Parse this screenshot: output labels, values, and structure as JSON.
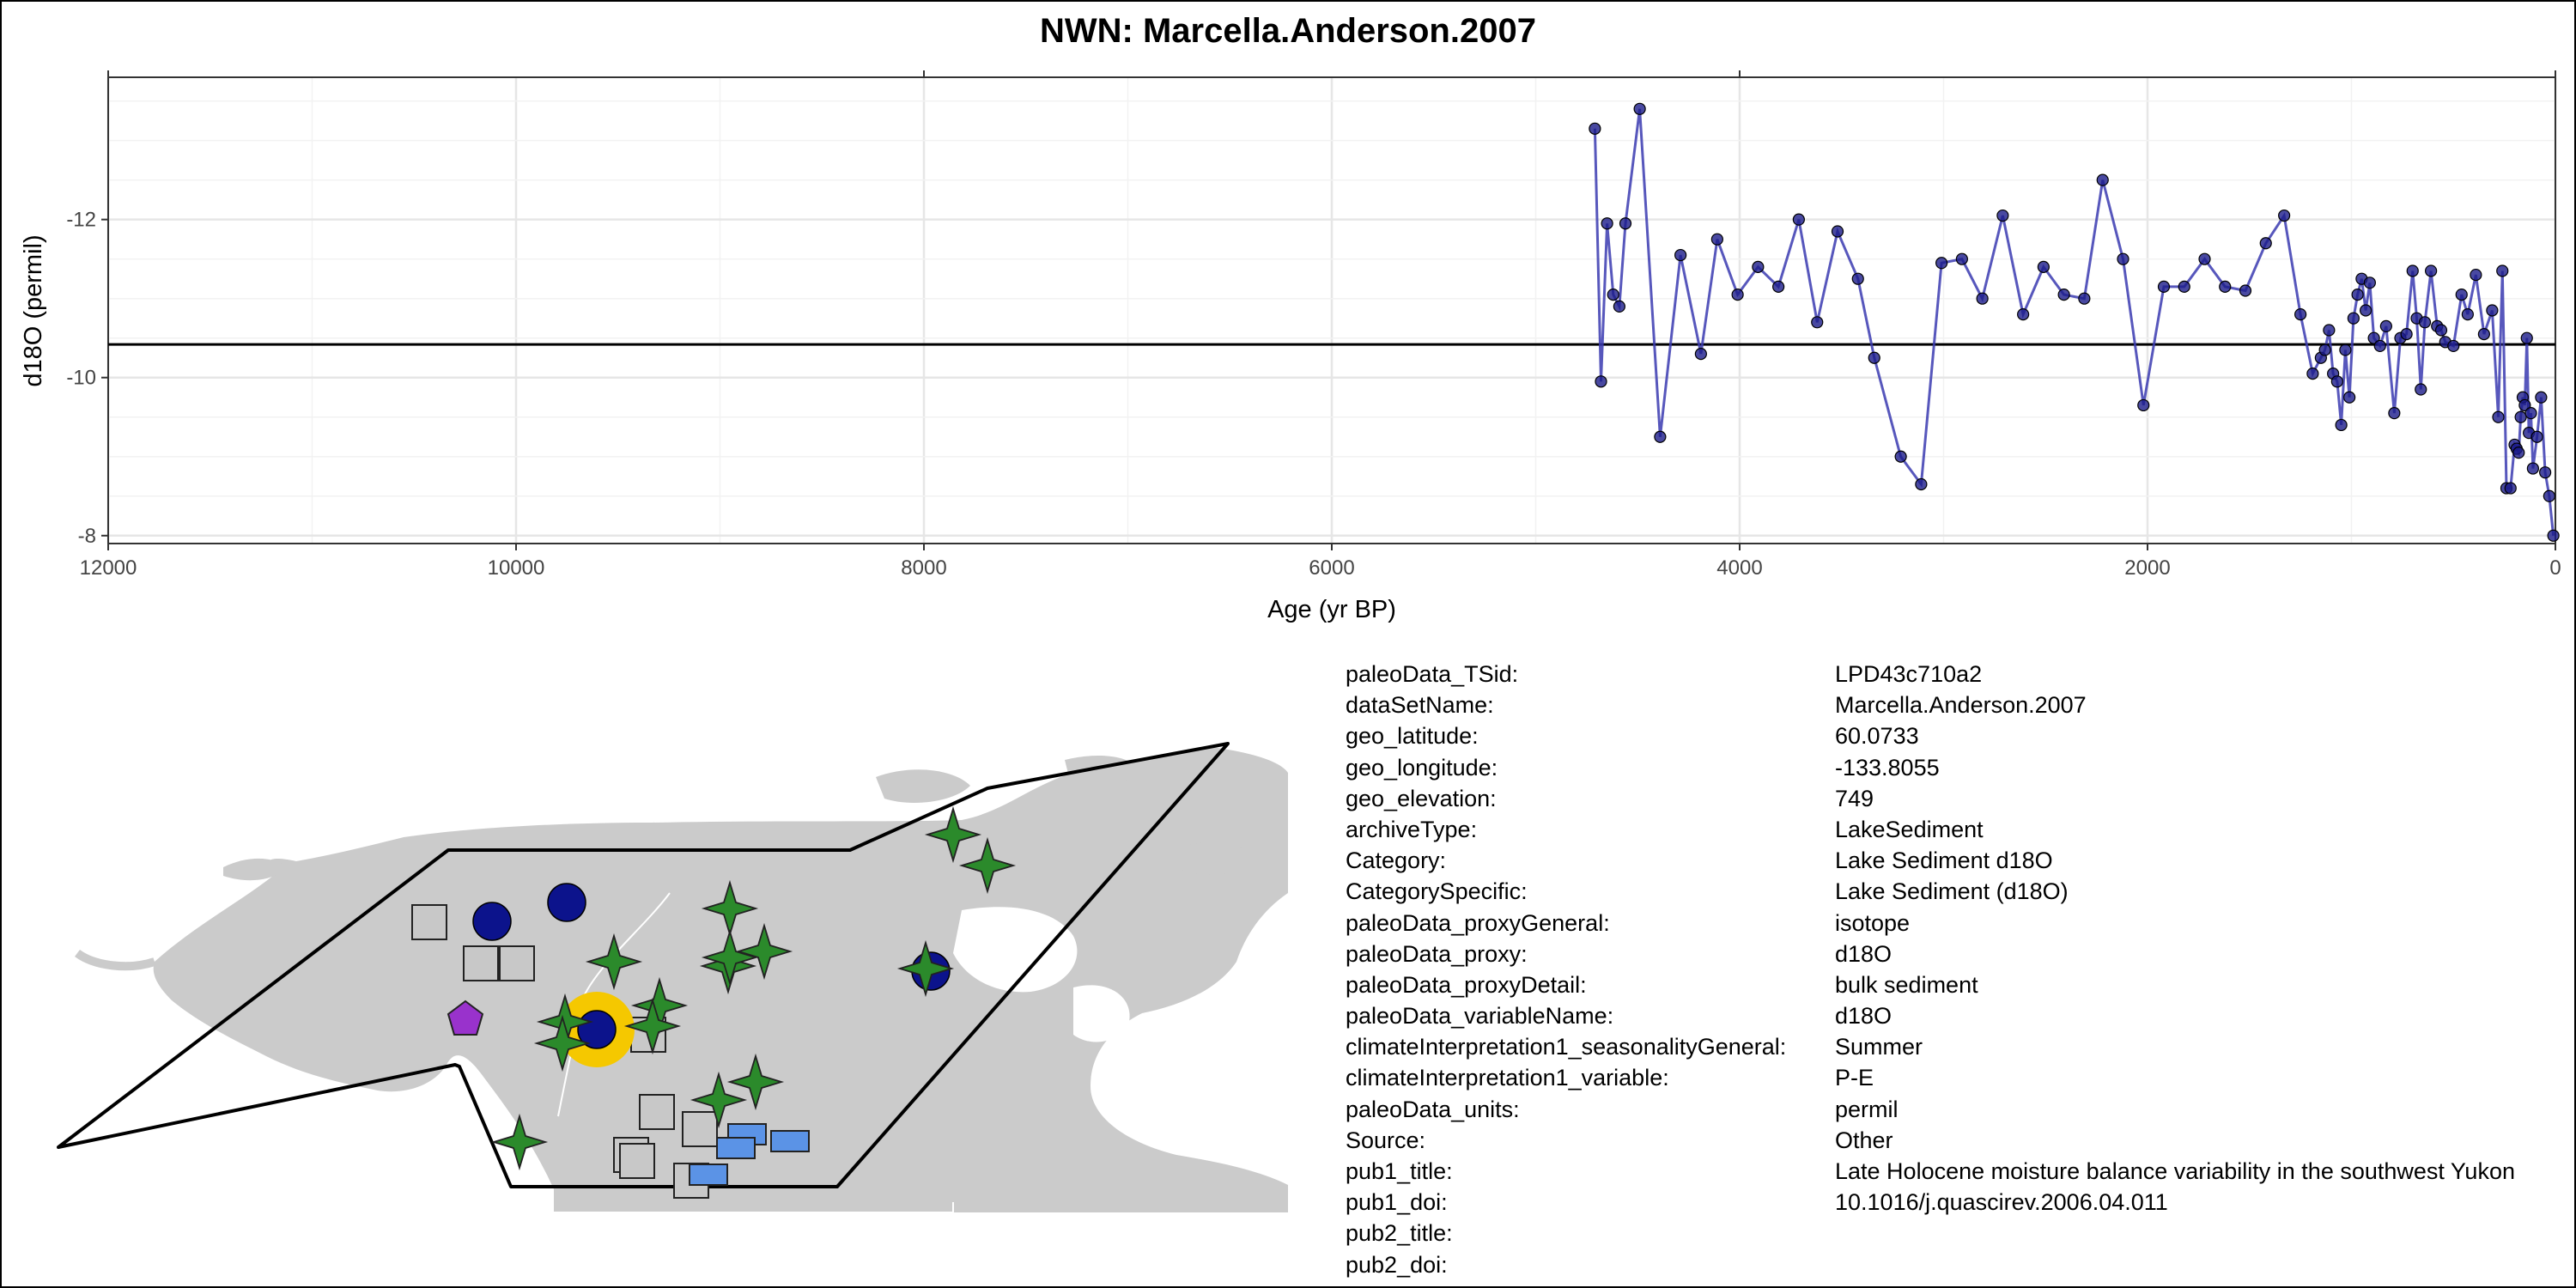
{
  "chart_data": {
    "type": "line",
    "title": "NWN: Marcella.Anderson.2007",
    "xlabel": "Age (yr BP)",
    "ylabel": "d18O (permil)",
    "x_reversed": true,
    "y_reversed": true,
    "xlim": [
      12000,
      0
    ],
    "ylim": [
      -7.9,
      -13.8
    ],
    "x_ticks": [
      12000,
      10000,
      8000,
      6000,
      4000,
      2000,
      0
    ],
    "x_tick_labels": [
      "12000",
      "10000",
      "8000",
      "6000",
      "4000",
      "2000",
      "0"
    ],
    "y_ticks": [
      -12,
      -10,
      -8
    ],
    "y_tick_labels": [
      "-12",
      "-10",
      "-8"
    ],
    "grid": true,
    "reference_line_y": -10.42,
    "series": [
      {
        "color": "#3a3ab0",
        "marker_color": "#1c1c8a",
        "x": [
          4710,
          4680,
          4650,
          4620,
          4590,
          4560,
          4490,
          4390,
          4290,
          4190,
          4110,
          4010,
          3910,
          3810,
          3710,
          3620,
          3520,
          3420,
          3340,
          3210,
          3110,
          3010,
          2910,
          2810,
          2710,
          2610,
          2510,
          2410,
          2310,
          2220,
          2120,
          2020,
          1920,
          1820,
          1720,
          1620,
          1520,
          1420,
          1330,
          1250,
          1190,
          1150,
          1130,
          1110,
          1090,
          1070,
          1050,
          1030,
          1010,
          990,
          970,
          950,
          930,
          910,
          890,
          860,
          830,
          790,
          760,
          730,
          700,
          680,
          660,
          640,
          610,
          580,
          560,
          540,
          500,
          460,
          430,
          390,
          350,
          310,
          280,
          260,
          240,
          220,
          200,
          190,
          180,
          170,
          160,
          150,
          140,
          130,
          120,
          110,
          90,
          70,
          50,
          30,
          10
        ],
        "y": [
          -13.15,
          -9.95,
          -11.95,
          -11.05,
          -10.9,
          -11.95,
          -13.4,
          -9.25,
          -11.55,
          -10.3,
          -11.75,
          -11.05,
          -11.4,
          -11.15,
          -12.0,
          -10.7,
          -11.85,
          -11.25,
          -10.25,
          -9.0,
          -8.65,
          -11.45,
          -11.5,
          -11.0,
          -12.05,
          -10.8,
          -11.4,
          -11.05,
          -11.0,
          -12.5,
          -11.5,
          -9.65,
          -11.15,
          -11.15,
          -11.5,
          -11.15,
          -11.1,
          -11.7,
          -12.05,
          -10.8,
          -10.05,
          -10.25,
          -10.35,
          -10.6,
          -10.05,
          -9.95,
          -9.4,
          -10.35,
          -9.75,
          -10.75,
          -11.05,
          -11.25,
          -10.85,
          -11.2,
          -10.5,
          -10.4,
          -10.65,
          -9.55,
          -10.5,
          -10.55,
          -11.35,
          -10.75,
          -9.85,
          -10.7,
          -11.35,
          -10.65,
          -10.6,
          -10.45,
          -10.4,
          -11.05,
          -10.8,
          -11.3,
          -10.55,
          -10.85,
          -9.5,
          -11.35,
          -8.6,
          -8.6,
          -9.15,
          -9.1,
          -9.05,
          -9.5,
          -9.75,
          -9.65,
          -10.5,
          -9.3,
          -9.55,
          -8.85,
          -9.25,
          -9.75,
          -8.8,
          -8.5,
          -8.0
        ]
      }
    ]
  },
  "map": {
    "land_color": "#cbcbcb",
    "highlight_ring_color": "#f5c800",
    "markers": [
      {
        "shape": "square",
        "color": "#c8c8c8"
      },
      {
        "shape": "circle",
        "color": "#0c138c"
      },
      {
        "shape": "star4",
        "color": "#2b8a2b"
      },
      {
        "shape": "pentagon",
        "color": "#9932cc"
      },
      {
        "shape": "rect",
        "color": "#5b93e6"
      }
    ]
  },
  "metadata": {
    "rows": [
      {
        "key": "paleoData_TSid:",
        "value": "LPD43c710a2"
      },
      {
        "key": "dataSetName:",
        "value": "Marcella.Anderson.2007"
      },
      {
        "key": "geo_latitude:",
        "value": "60.0733"
      },
      {
        "key": "geo_longitude:",
        "value": "-133.8055"
      },
      {
        "key": "geo_elevation:",
        "value": "749"
      },
      {
        "key": "archiveType:",
        "value": "LakeSediment"
      },
      {
        "key": "Category:",
        "value": "Lake Sediment d18O"
      },
      {
        "key": "CategorySpecific:",
        "value": "Lake Sediment (d18O)"
      },
      {
        "key": "paleoData_proxyGeneral:",
        "value": "isotope"
      },
      {
        "key": "paleoData_proxy:",
        "value": "d18O"
      },
      {
        "key": "paleoData_proxyDetail:",
        "value": "bulk sediment"
      },
      {
        "key": "paleoData_variableName:",
        "value": "d18O"
      },
      {
        "key": "climateInterpretation1_seasonalityGeneral:",
        "value": "Summer"
      },
      {
        "key": "climateInterpretation1_variable:",
        "value": "P-E"
      },
      {
        "key": "paleoData_units:",
        "value": "permil"
      },
      {
        "key": "Source:",
        "value": "Other"
      },
      {
        "key": "pub1_title:",
        "value": "Late Holocene moisture balance variability in the southwest Yukon"
      },
      {
        "key": "pub1_doi:",
        "value": "10.1016/j.quascirev.2006.04.011"
      },
      {
        "key": "pub2_title:",
        "value": ""
      },
      {
        "key": "pub2_doi:",
        "value": ""
      }
    ]
  }
}
